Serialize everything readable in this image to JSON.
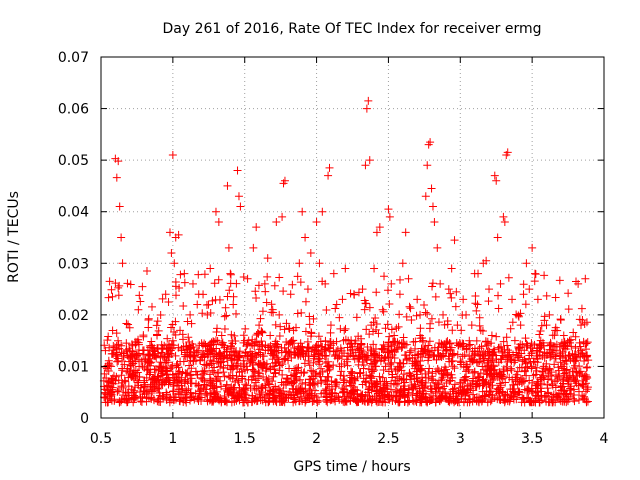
{
  "chart_data": {
    "type": "scatter",
    "title": "Day 261 of 2016, Rate Of TEC Index for receiver ermg",
    "xlabel": "GPS time / hours",
    "ylabel": "ROTI / TECUs",
    "xlim": [
      0.5,
      4
    ],
    "ylim": [
      0,
      0.07
    ],
    "xticks": [
      "0.5",
      "1",
      "1.5",
      "2",
      "2.5",
      "3",
      "3.5",
      "4"
    ],
    "yticks": [
      "0",
      "0.01",
      "0.02",
      "0.03",
      "0.04",
      "0.05",
      "0.06",
      "0.07"
    ],
    "grid": true,
    "marker": "+",
    "color": "#ff0000",
    "series": [
      {
        "name": "ROTI",
        "points": [
          [
            0.52,
            0.0072
          ],
          [
            0.54,
            0.0061
          ],
          [
            0.55,
            0.0158
          ],
          [
            0.56,
            0.0265
          ],
          [
            0.57,
            0.01
          ],
          [
            0.58,
            0.0235
          ],
          [
            0.59,
            0.0082
          ],
          [
            0.6,
            0.0503
          ],
          [
            0.61,
            0.0466
          ],
          [
            0.62,
            0.0498
          ],
          [
            0.63,
            0.041
          ],
          [
            0.64,
            0.035
          ],
          [
            0.65,
            0.03
          ],
          [
            0.66,
            0.0125
          ],
          [
            0.67,
            0.005
          ],
          [
            0.68,
            0.009
          ],
          [
            0.7,
            0.0175
          ],
          [
            0.72,
            0.014
          ],
          [
            0.74,
            0.008
          ],
          [
            0.76,
            0.021
          ],
          [
            0.78,
            0.011
          ],
          [
            0.8,
            0.006
          ],
          [
            0.82,
            0.0285
          ],
          [
            0.83,
            0.019
          ],
          [
            0.85,
            0.004
          ],
          [
            0.87,
            0.012
          ],
          [
            0.89,
            0.016
          ],
          [
            0.9,
            0.0075
          ],
          [
            0.92,
            0.01
          ],
          [
            0.94,
            0.014
          ],
          [
            0.95,
            0.024
          ],
          [
            0.96,
            0.0085
          ],
          [
            0.97,
            0.0225
          ],
          [
            0.98,
            0.036
          ],
          [
            0.99,
            0.032
          ],
          [
            1.0,
            0.051
          ],
          [
            1.01,
            0.03
          ],
          [
            1.02,
            0.035
          ],
          [
            1.04,
            0.0355
          ],
          [
            1.05,
            0.017
          ],
          [
            1.06,
            0.007
          ],
          [
            1.08,
            0.028
          ],
          [
            1.1,
            0.012
          ],
          [
            1.12,
            0.02
          ],
          [
            1.14,
            0.026
          ],
          [
            1.16,
            0.009
          ],
          [
            1.18,
            0.024
          ],
          [
            1.2,
            0.0145
          ],
          [
            1.22,
            0.0065
          ],
          [
            1.24,
            0.02
          ],
          [
            1.26,
            0.029
          ],
          [
            1.28,
            0.011
          ],
          [
            1.3,
            0.04
          ],
          [
            1.32,
            0.038
          ],
          [
            1.34,
            0.016
          ],
          [
            1.36,
            0.008
          ],
          [
            1.38,
            0.045
          ],
          [
            1.39,
            0.033
          ],
          [
            1.4,
            0.028
          ],
          [
            1.42,
            0.022
          ],
          [
            1.44,
            0.013
          ],
          [
            1.45,
            0.048
          ],
          [
            1.46,
            0.043
          ],
          [
            1.47,
            0.041
          ],
          [
            1.48,
            0.009
          ],
          [
            1.5,
            0.015
          ],
          [
            1.52,
            0.027
          ],
          [
            1.54,
            0.011
          ],
          [
            1.56,
            0.033
          ],
          [
            1.58,
            0.037
          ],
          [
            1.6,
            0.018
          ],
          [
            1.62,
            0.006
          ],
          [
            1.64,
            0.026
          ],
          [
            1.66,
            0.031
          ],
          [
            1.68,
            0.014
          ],
          [
            1.7,
            0.008
          ],
          [
            1.72,
            0.038
          ],
          [
            1.74,
            0.02
          ],
          [
            1.76,
            0.039
          ],
          [
            1.77,
            0.0455
          ],
          [
            1.78,
            0.046
          ],
          [
            1.8,
            0.012
          ],
          [
            1.82,
            0.024
          ],
          [
            1.84,
            0.017
          ],
          [
            1.86,
            0.005
          ],
          [
            1.88,
            0.03
          ],
          [
            1.9,
            0.04
          ],
          [
            1.92,
            0.035
          ],
          [
            1.94,
            0.025
          ],
          [
            1.96,
            0.032
          ],
          [
            1.98,
            0.012
          ],
          [
            2.0,
            0.038
          ],
          [
            2.02,
            0.03
          ],
          [
            2.04,
            0.04
          ],
          [
            2.06,
            0.026
          ],
          [
            2.08,
            0.047
          ],
          [
            2.09,
            0.0485
          ],
          [
            2.1,
            0.018
          ],
          [
            2.12,
            0.028
          ],
          [
            2.14,
            0.022
          ],
          [
            2.16,
            0.01
          ],
          [
            2.18,
            0.023
          ],
          [
            2.2,
            0.029
          ],
          [
            2.22,
            0.015
          ],
          [
            2.24,
            0.009
          ],
          [
            2.26,
            0.024
          ],
          [
            2.28,
            0.0195
          ],
          [
            2.3,
            0.012
          ],
          [
            2.32,
            0.025
          ],
          [
            2.34,
            0.049
          ],
          [
            2.35,
            0.06
          ],
          [
            2.36,
            0.0615
          ],
          [
            2.37,
            0.05
          ],
          [
            2.38,
            0.018
          ],
          [
            2.4,
            0.029
          ],
          [
            2.42,
            0.036
          ],
          [
            2.44,
            0.037
          ],
          [
            2.46,
            0.021
          ],
          [
            2.48,
            0.01
          ],
          [
            2.5,
            0.0405
          ],
          [
            2.51,
            0.039
          ],
          [
            2.52,
            0.026
          ],
          [
            2.54,
            0.016
          ],
          [
            2.56,
            0.008
          ],
          [
            2.58,
            0.024
          ],
          [
            2.6,
            0.03
          ],
          [
            2.62,
            0.036
          ],
          [
            2.64,
            0.027
          ],
          [
            2.66,
            0.019
          ],
          [
            2.68,
            0.011
          ],
          [
            2.7,
            0.023
          ],
          [
            2.72,
            0.02
          ],
          [
            2.74,
            0.015
          ],
          [
            2.76,
            0.043
          ],
          [
            2.77,
            0.049
          ],
          [
            2.78,
            0.053
          ],
          [
            2.79,
            0.0535
          ],
          [
            2.8,
            0.0445
          ],
          [
            2.81,
            0.041
          ],
          [
            2.82,
            0.038
          ],
          [
            2.84,
            0.033
          ],
          [
            2.86,
            0.026
          ],
          [
            2.88,
            0.02
          ],
          [
            2.9,
            0.013
          ],
          [
            2.92,
            0.025
          ],
          [
            2.94,
            0.029
          ],
          [
            2.96,
            0.0345
          ],
          [
            2.98,
            0.018
          ],
          [
            3.0,
            0.011
          ],
          [
            3.02,
            0.023
          ],
          [
            3.04,
            0.02
          ],
          [
            3.06,
            0.014
          ],
          [
            3.08,
            0.018
          ],
          [
            3.1,
            0.028
          ],
          [
            3.12,
            0.022
          ],
          [
            3.14,
            0.012
          ],
          [
            3.16,
            0.03
          ],
          [
            3.18,
            0.0305
          ],
          [
            3.2,
            0.025
          ],
          [
            3.22,
            0.016
          ],
          [
            3.24,
            0.047
          ],
          [
            3.25,
            0.046
          ],
          [
            3.26,
            0.035
          ],
          [
            3.28,
            0.026
          ],
          [
            3.3,
            0.039
          ],
          [
            3.31,
            0.038
          ],
          [
            3.32,
            0.051
          ],
          [
            3.33,
            0.0515
          ],
          [
            3.34,
            0.012
          ],
          [
            3.36,
            0.023
          ],
          [
            3.38,
            0.015
          ],
          [
            3.4,
            0.009
          ],
          [
            3.42,
            0.018
          ],
          [
            3.44,
            0.024
          ],
          [
            3.46,
            0.03
          ],
          [
            3.48,
            0.025
          ],
          [
            3.5,
            0.033
          ],
          [
            3.52,
            0.028
          ],
          [
            3.54,
            0.023
          ],
          [
            3.56,
            0.015
          ],
          [
            3.58,
            0.01
          ],
          [
            3.6,
            0.018
          ],
          [
            3.62,
            0.02
          ],
          [
            3.64,
            0.013
          ],
          [
            3.66,
            0.017
          ],
          [
            3.68,
            0.008
          ],
          [
            3.7,
            0.019
          ],
          [
            3.72,
            0.016
          ],
          [
            3.74,
            0.011
          ],
          [
            3.76,
            0.015
          ],
          [
            3.78,
            0.009
          ],
          [
            3.8,
            0.012
          ],
          [
            3.82,
            0.026
          ],
          [
            3.84,
            0.018
          ],
          [
            3.85,
            0.019
          ],
          [
            3.86,
            0.012
          ],
          [
            3.87,
            0.027
          ],
          [
            3.88,
            0.008
          ]
        ]
      }
    ],
    "background_band": {
      "note": "dense cluster of points between roughly 0.003 and 0.015 across the full time range",
      "x_range": [
        0.52,
        3.89
      ],
      "y_range": [
        0.003,
        0.015
      ]
    }
  }
}
